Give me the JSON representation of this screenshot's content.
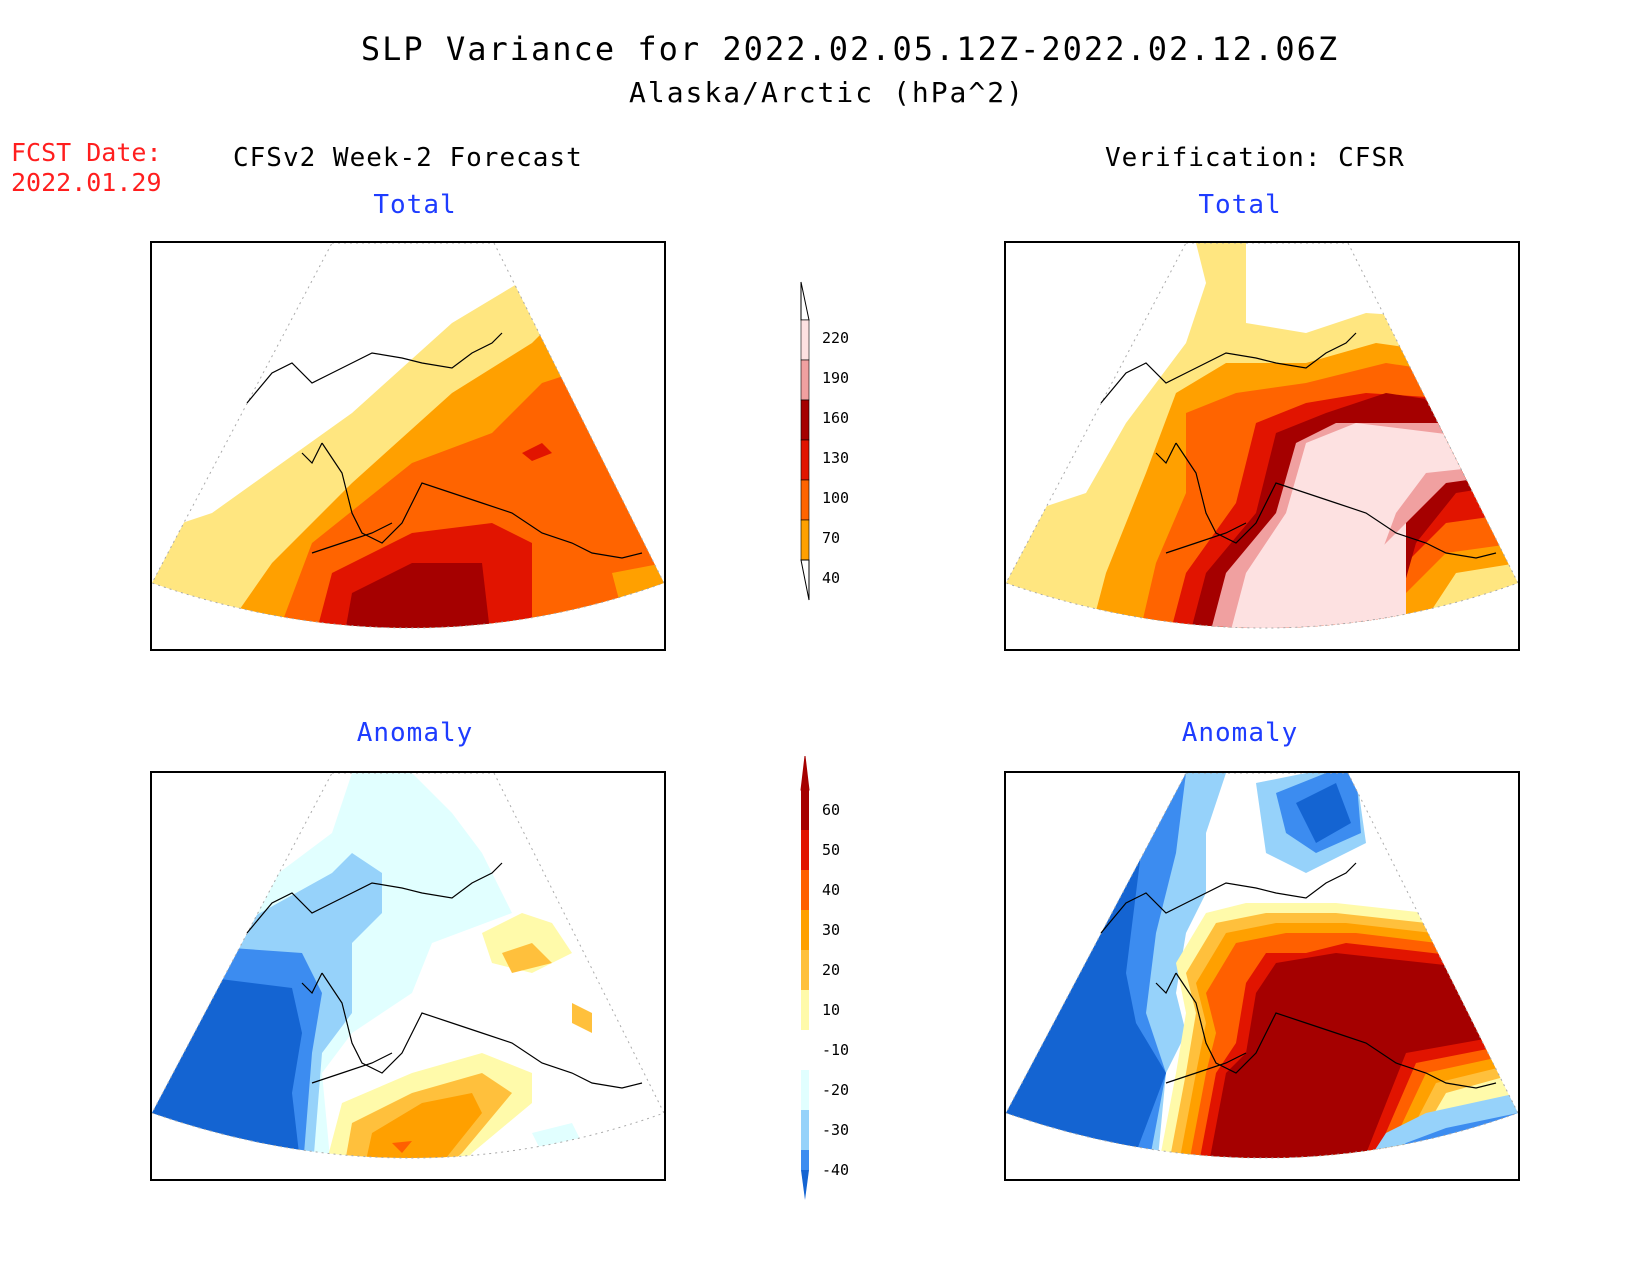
{
  "title": {
    "line1": "SLP Variance for 2022.02.05.12Z-2022.02.12.06Z",
    "line2": "Alaska/Arctic (hPa^2)"
  },
  "forecast_date": {
    "label": "FCST Date:",
    "value": "2022.01.29"
  },
  "headings": {
    "left": "CFSv2 Week-2 Forecast",
    "right": "Verification: CFSR"
  },
  "panels": {
    "forecast_total": {
      "title": "Total"
    },
    "forecast_anomaly": {
      "title": "Anomaly"
    },
    "verify_total": {
      "title": "Total"
    },
    "verify_anomaly": {
      "title": "Anomaly"
    }
  },
  "colorbars": {
    "total": {
      "labels": [
        "40",
        "70",
        "100",
        "130",
        "160",
        "190",
        "220"
      ],
      "colors": [
        "#ffe680",
        "#ffa000",
        "#ff6400",
        "#e11400",
        "#a50000",
        "#f0a0a0",
        "#fde1e1"
      ]
    },
    "anomaly": {
      "labels": [
        "-40",
        "-30",
        "-20",
        "-10",
        "10",
        "20",
        "30",
        "40",
        "50",
        "60"
      ],
      "colors": [
        "#1464d2",
        "#3c8cf0",
        "#96d2fa",
        "#e1ffff",
        "#ffffff",
        "#fffaaa",
        "#ffc03c",
        "#ffa000",
        "#ff6000",
        "#e11400",
        "#a50000"
      ]
    }
  },
  "chart_data": {
    "type": "heatmap",
    "variable": "SLP variance (hPa^2)",
    "region": "Alaska/Arctic",
    "period": "2022.02.05.12Z-2022.02.12.06Z",
    "forecast_date": "2022.01.29",
    "panels": [
      {
        "source": "CFSv2 Week-2 Forecast",
        "field": "Total",
        "min_visible": 40,
        "max_visible": 190
      },
      {
        "source": "CFSv2 Week-2 Forecast",
        "field": "Anomaly",
        "min_visible": -40,
        "max_visible": 30
      },
      {
        "source": "Verification: CFSR",
        "field": "Total",
        "min_visible": 40,
        "max_visible": 220
      },
      {
        "source": "Verification: CFSR",
        "field": "Anomaly",
        "min_visible": -40,
        "max_visible": 60
      }
    ]
  }
}
